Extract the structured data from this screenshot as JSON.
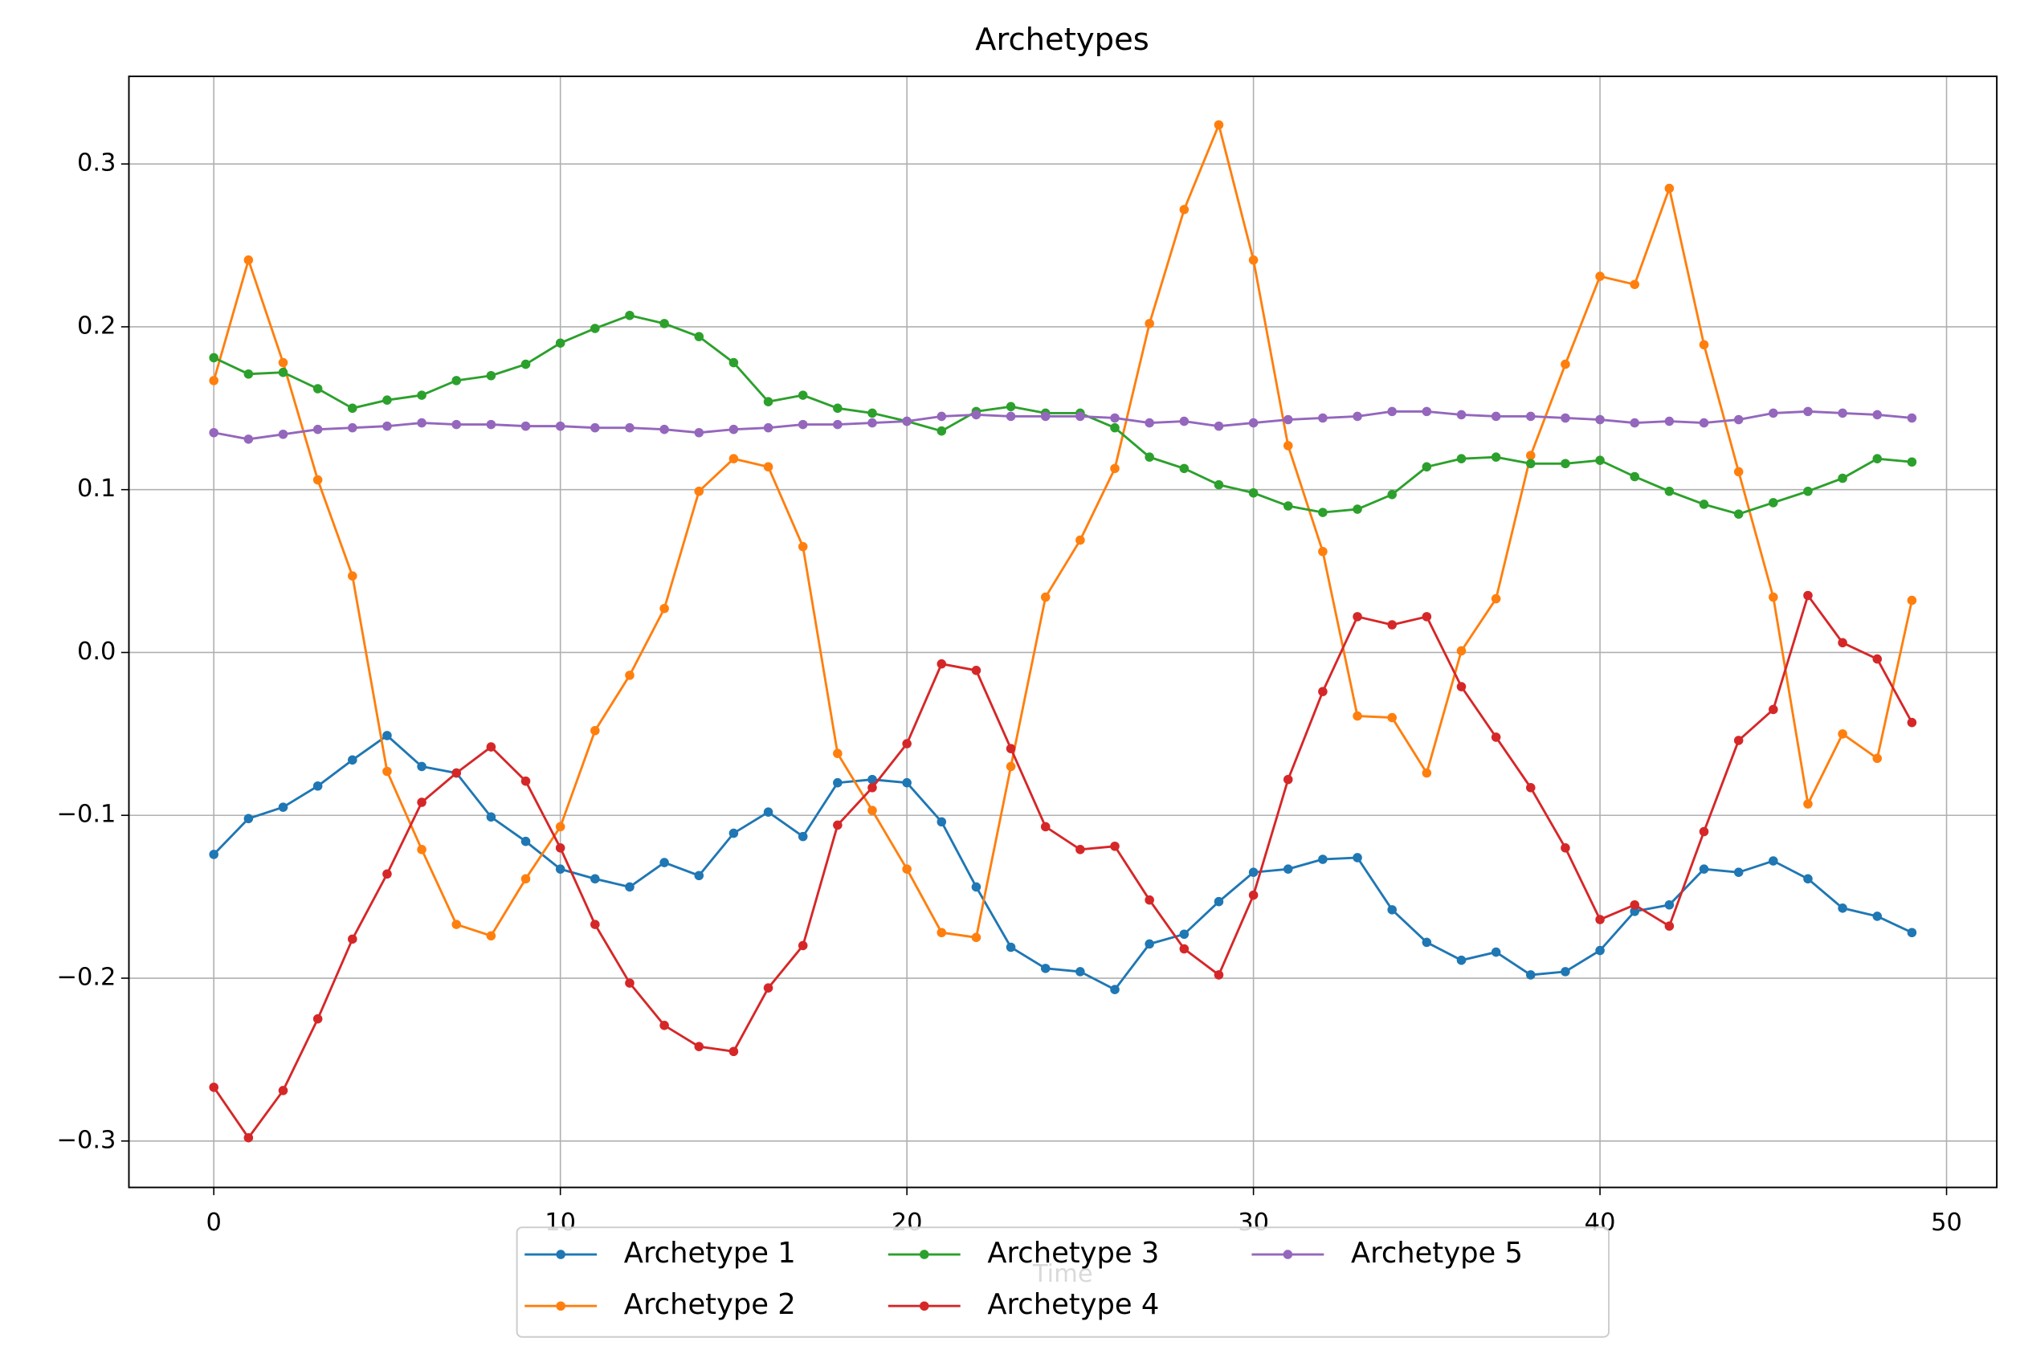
{
  "chart_data": {
    "type": "line",
    "title": "Archetypes",
    "x_label": "Time",
    "x": [
      0,
      1,
      2,
      3,
      4,
      5,
      6,
      7,
      8,
      9,
      10,
      11,
      12,
      13,
      14,
      15,
      16,
      17,
      18,
      19,
      20,
      21,
      22,
      23,
      24,
      25,
      26,
      27,
      28,
      29,
      30,
      31,
      32,
      33,
      34,
      35,
      36,
      37,
      38,
      39,
      40,
      41,
      42,
      43,
      44,
      45,
      46,
      47,
      48,
      49
    ],
    "series": [
      {
        "name": "Archetype 1",
        "color": "#1f77b4",
        "values": [
          -0.124,
          -0.102,
          -0.095,
          -0.082,
          -0.066,
          -0.051,
          -0.07,
          -0.074,
          -0.101,
          -0.116,
          -0.133,
          -0.139,
          -0.144,
          -0.129,
          -0.137,
          -0.111,
          -0.098,
          -0.113,
          -0.08,
          -0.078,
          -0.08,
          -0.104,
          -0.144,
          -0.181,
          -0.194,
          -0.196,
          -0.207,
          -0.179,
          -0.173,
          -0.153,
          -0.135,
          -0.133,
          -0.127,
          -0.126,
          -0.158,
          -0.178,
          -0.189,
          -0.184,
          -0.198,
          -0.196,
          -0.183,
          -0.159,
          -0.155,
          -0.133,
          -0.135,
          -0.128,
          -0.139,
          -0.157,
          -0.162,
          -0.172
        ]
      },
      {
        "name": "Archetype 2",
        "color": "#ff7f0e",
        "values": [
          0.167,
          0.241,
          0.178,
          0.106,
          0.047,
          -0.073,
          -0.121,
          -0.167,
          -0.174,
          -0.139,
          -0.107,
          -0.048,
          -0.014,
          0.027,
          0.099,
          0.119,
          0.114,
          0.065,
          -0.062,
          -0.097,
          -0.133,
          -0.172,
          -0.175,
          -0.07,
          0.034,
          0.069,
          0.113,
          0.202,
          0.272,
          0.324,
          0.241,
          0.127,
          0.062,
          -0.039,
          -0.04,
          -0.074,
          0.001,
          0.033,
          0.121,
          0.177,
          0.231,
          0.226,
          0.285,
          0.189,
          0.111,
          0.034,
          -0.093,
          -0.05,
          -0.065,
          0.032
        ]
      },
      {
        "name": "Archetype 3",
        "color": "#2ca02c",
        "values": [
          0.181,
          0.171,
          0.172,
          0.162,
          0.15,
          0.155,
          0.158,
          0.167,
          0.17,
          0.177,
          0.19,
          0.199,
          0.207,
          0.202,
          0.194,
          0.178,
          0.154,
          0.158,
          0.15,
          0.147,
          0.142,
          0.136,
          0.148,
          0.151,
          0.147,
          0.147,
          0.138,
          0.12,
          0.113,
          0.103,
          0.098,
          0.09,
          0.086,
          0.088,
          0.097,
          0.114,
          0.119,
          0.12,
          0.116,
          0.116,
          0.118,
          0.108,
          0.099,
          0.091,
          0.085,
          0.092,
          0.099,
          0.107,
          0.119,
          0.117
        ]
      },
      {
        "name": "Archetype 4",
        "color": "#d62728",
        "values": [
          -0.267,
          -0.298,
          -0.269,
          -0.225,
          -0.176,
          -0.136,
          -0.092,
          -0.074,
          -0.058,
          -0.079,
          -0.12,
          -0.167,
          -0.203,
          -0.229,
          -0.242,
          -0.245,
          -0.206,
          -0.18,
          -0.106,
          -0.083,
          -0.056,
          -0.007,
          -0.011,
          -0.059,
          -0.107,
          -0.121,
          -0.119,
          -0.152,
          -0.182,
          -0.198,
          -0.149,
          -0.078,
          -0.024,
          0.022,
          0.017,
          0.022,
          -0.021,
          -0.052,
          -0.083,
          -0.12,
          -0.164,
          -0.155,
          -0.168,
          -0.11,
          -0.054,
          -0.035,
          0.035,
          0.006,
          -0.004,
          -0.043
        ]
      },
      {
        "name": "Archetype 5",
        "color": "#9467bd",
        "values": [
          0.135,
          0.131,
          0.134,
          0.137,
          0.138,
          0.139,
          0.141,
          0.14,
          0.14,
          0.139,
          0.139,
          0.138,
          0.138,
          0.137,
          0.135,
          0.137,
          0.138,
          0.14,
          0.14,
          0.141,
          0.142,
          0.145,
          0.146,
          0.145,
          0.145,
          0.145,
          0.144,
          0.141,
          0.142,
          0.139,
          0.141,
          0.143,
          0.144,
          0.145,
          0.148,
          0.148,
          0.146,
          0.145,
          0.145,
          0.144,
          0.143,
          0.141,
          0.142,
          0.141,
          0.143,
          0.147,
          0.148,
          0.147,
          0.146,
          0.144
        ]
      }
    ],
    "xlim": [
      -2.45,
      51.45
    ],
    "xticks": [
      0,
      10,
      20,
      30,
      40,
      50
    ],
    "ylim": [
      -0.3285,
      0.3538
    ],
    "yticks": [
      {
        "value": -0.3,
        "label": "−0.3"
      },
      {
        "value": -0.2,
        "label": "−0.2"
      },
      {
        "value": -0.1,
        "label": "−0.1"
      },
      {
        "value": 0,
        "label": "0.0"
      },
      0.1,
      0.2,
      0.3
    ],
    "grid": true,
    "legend": "lower center",
    "legend_columns": 3
  }
}
